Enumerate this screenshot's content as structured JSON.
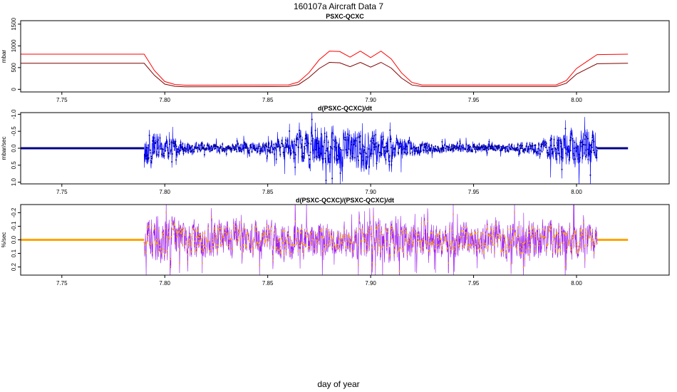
{
  "page": {
    "title": "160107a   Aircraft Data 7",
    "xlabel": "day of year"
  },
  "chart_data": [
    {
      "type": "line",
      "title": "PSXC-QCXC",
      "ylabel": "mbar",
      "xlim": [
        7.73,
        8.045
      ],
      "ylim": [
        -60,
        1580
      ],
      "x_ticks": [
        "7.75",
        "7.80",
        "7.85",
        "7.90",
        "7.95",
        "8.00"
      ],
      "y_ticks": [
        "0",
        "500",
        "1000",
        "1500"
      ],
      "y_tick_values": [
        0,
        500,
        1000,
        1500
      ],
      "series": [
        {
          "color": "#ff0000",
          "x": [
            7.73,
            7.79,
            7.795,
            7.8,
            7.805,
            7.81,
            7.86,
            7.865,
            7.87,
            7.875,
            7.88,
            7.885,
            7.89,
            7.895,
            7.9,
            7.905,
            7.91,
            7.915,
            7.92,
            7.925,
            7.99,
            7.995,
            8.0,
            8.005,
            8.01,
            8.025
          ],
          "y": [
            810,
            810,
            430,
            180,
            110,
            95,
            100,
            170,
            380,
            680,
            880,
            870,
            740,
            880,
            730,
            880,
            700,
            380,
            160,
            100,
            100,
            200,
            480,
            640,
            800,
            810
          ]
        },
        {
          "color": "#7f0000",
          "x": [
            7.73,
            7.79,
            7.795,
            7.8,
            7.805,
            7.81,
            7.86,
            7.865,
            7.87,
            7.875,
            7.88,
            7.885,
            7.89,
            7.895,
            7.9,
            7.905,
            7.91,
            7.915,
            7.92,
            7.925,
            7.99,
            7.995,
            8.0,
            8.005,
            8.01,
            8.025
          ],
          "y": [
            600,
            600,
            320,
            120,
            70,
            60,
            65,
            110,
            270,
            480,
            620,
            610,
            520,
            620,
            510,
            620,
            490,
            260,
            100,
            65,
            65,
            140,
            350,
            470,
            590,
            600
          ]
        }
      ]
    },
    {
      "type": "line",
      "title": "d(PSXC-QCXC)/dt",
      "ylabel": "mbar/sec",
      "xlim": [
        7.73,
        8.045
      ],
      "ylim": [
        1.05,
        -1.05
      ],
      "x_ticks": [
        "7.75",
        "7.80",
        "7.85",
        "7.90",
        "7.95",
        "8.00"
      ],
      "y_ticks": [
        "-1.0",
        "-0.5",
        "0.0",
        "0.5",
        "1.0"
      ],
      "y_tick_values": [
        -1.0,
        -0.5,
        0.0,
        0.5,
        1.0
      ],
      "series": [
        {
          "color": "#0000ff",
          "point_color": "#00008b",
          "baseline": 0.0,
          "active_range": [
            7.79,
            8.01
          ],
          "noise_profile": {
            "x": [
              7.79,
              7.795,
              7.8,
              7.81,
              7.82,
              7.83,
              7.84,
              7.85,
              7.86,
              7.865,
              7.87,
              7.88,
              7.89,
              7.9,
              7.91,
              7.92,
              7.93,
              7.96,
              7.97,
              7.98,
              7.99,
              8.0,
              8.005,
              8.01
            ],
            "amp": [
              0.95,
              0.9,
              0.55,
              0.35,
              0.25,
              0.2,
              0.3,
              0.35,
              0.6,
              0.85,
              0.95,
              1.0,
              0.95,
              1.0,
              0.7,
              0.45,
              0.25,
              0.2,
              0.25,
              0.3,
              0.75,
              0.9,
              0.9,
              0.85
            ]
          }
        }
      ]
    },
    {
      "type": "line",
      "title": "d(PSXC-QCXC)/(PSXC-QCXC)/dt",
      "ylabel": "%/sec",
      "xlim": [
        7.73,
        8.045
      ],
      "ylim": [
        0.26,
        -0.26
      ],
      "x_ticks": [
        "7.75",
        "7.80",
        "7.85",
        "7.90",
        "7.95",
        "8.00"
      ],
      "y_ticks": [
        "-0.2",
        "-0.1",
        "0.0",
        "0.1",
        "0.2"
      ],
      "y_tick_values": [
        -0.2,
        -0.1,
        0.0,
        0.1,
        0.2
      ],
      "series": [
        {
          "color": "#a020f0",
          "point_color": "#ffa500",
          "baseline": 0.0,
          "active_range": [
            7.79,
            8.01
          ],
          "noise_profile": {
            "x": [
              7.79,
              7.795,
              7.8,
              7.81,
              7.83,
              7.85,
              7.86,
              7.87,
              7.88,
              7.89,
              7.9,
              7.91,
              7.92,
              7.95,
              7.97,
              7.99,
              8.0,
              8.01
            ],
            "amp": [
              0.25,
              0.26,
              0.24,
              0.2,
              0.22,
              0.2,
              0.25,
              0.22,
              0.2,
              0.18,
              0.22,
              0.26,
              0.22,
              0.2,
              0.22,
              0.24,
              0.22,
              0.15
            ]
          }
        }
      ]
    }
  ]
}
